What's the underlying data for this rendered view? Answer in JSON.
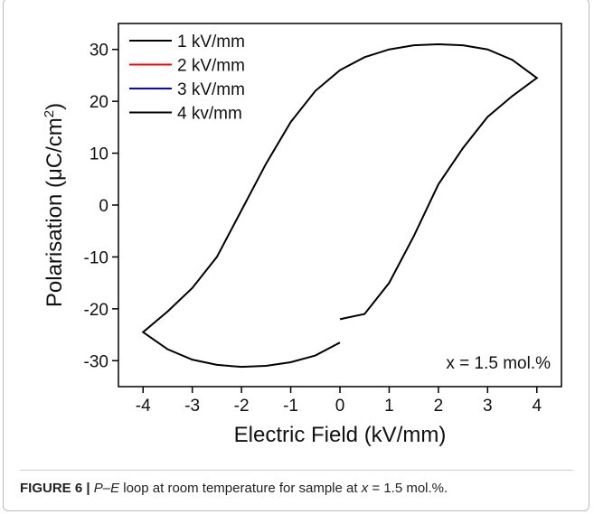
{
  "chart_data": {
    "type": "line",
    "ylabel": [
      "Polarisation (μC/cm",
      "2",
      ")"
    ],
    "xlabel": "Electric Field (kV/mm)",
    "annotation": "x = 1.5 mol.%",
    "xlim": [
      -4.5,
      4.5
    ],
    "xticks": [
      -4,
      -3,
      -2,
      -1,
      0,
      1,
      2,
      3,
      4
    ],
    "ylim": [
      -35,
      35
    ],
    "yticks": [
      -30,
      -20,
      -10,
      0,
      10,
      20,
      30
    ],
    "legend": "upper left",
    "series": [
      {
        "name": "1 kV/mm",
        "color": "#000000",
        "x": [],
        "values": []
      },
      {
        "name": "2 kV/mm",
        "color": "#ff0000",
        "x": [],
        "values": []
      },
      {
        "name": "3 kV/mm",
        "color": "#0000ff",
        "x": [],
        "values": []
      },
      {
        "name": "4 kv/mm",
        "color": "#000000",
        "x": [
          0,
          0.5,
          1,
          1.5,
          2,
          2.5,
          3,
          3.5,
          4,
          3.5,
          3,
          2.5,
          2,
          1.5,
          1,
          0.5,
          0,
          -0.5,
          -1,
          -1.5,
          -2,
          -2.5,
          -3,
          -3.5,
          -4,
          -3.5,
          -3,
          -2.5,
          -2,
          -1.5,
          -1,
          -0.5,
          0
        ],
        "values": [
          -22,
          -21,
          -15,
          -6,
          4,
          11,
          17,
          21,
          24.5,
          28,
          30,
          30.8,
          31,
          30.8,
          30,
          28.5,
          26,
          22,
          16,
          8,
          -1,
          -10,
          -16,
          -20.5,
          -24.5,
          -27.8,
          -29.8,
          -30.8,
          -31.2,
          -31,
          -30.3,
          -29,
          -26.5
        ]
      }
    ]
  },
  "caption": [
    "FIGURE 6 |",
    "P–E",
    " loop at room temperature for sample at ",
    "x",
    " = 1.5 mol.%."
  ]
}
